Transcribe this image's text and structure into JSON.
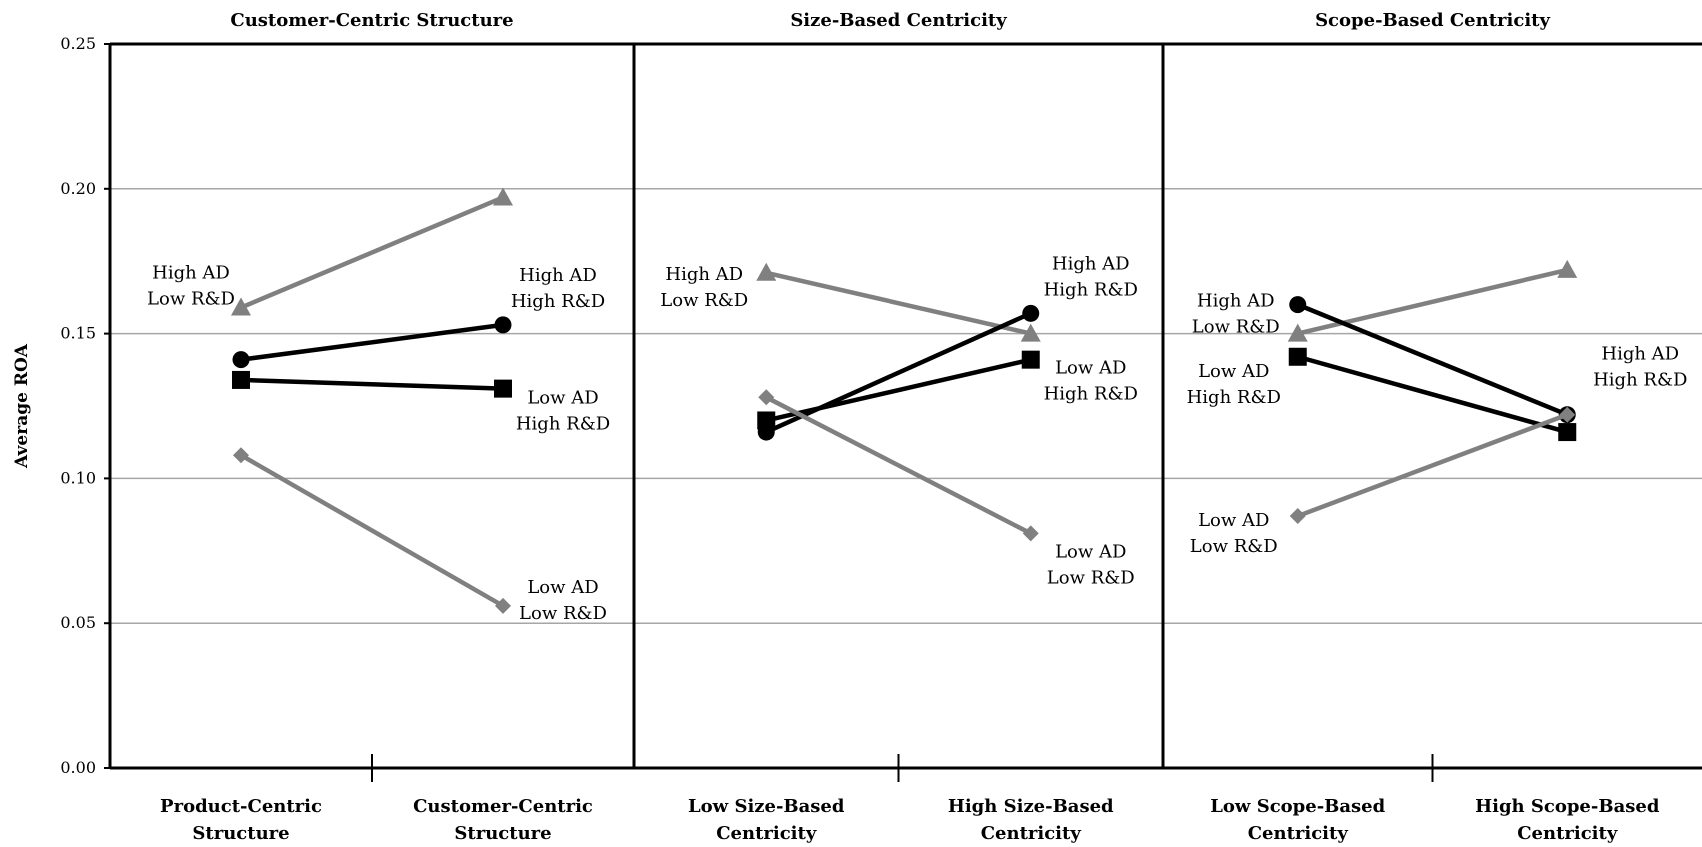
{
  "chart_data": {
    "type": "line",
    "ylabel": "Average ROA",
    "ylim": [
      0,
      0.25
    ],
    "yticks": [
      "0.00",
      "0.05",
      "0.10",
      "0.15",
      "0.20",
      "0.25"
    ],
    "grid": true,
    "series_styles": {
      "high_ad_low_rd": {
        "color": "#808080",
        "marker": "triangle"
      },
      "high_ad_high_rd": {
        "color": "#000000",
        "marker": "circle"
      },
      "low_ad_high_rd": {
        "color": "#000000",
        "marker": "square"
      },
      "low_ad_low_rd": {
        "color": "#808080",
        "marker": "diamond"
      }
    },
    "panels": [
      {
        "title": "Customer-Centric Structure",
        "categories": [
          [
            "Product-Centric",
            "Structure"
          ],
          [
            "Customer-Centric",
            "Structure"
          ]
        ],
        "series": [
          {
            "key": "high_ad_low_rd",
            "values": [
              0.159,
              0.197
            ]
          },
          {
            "key": "high_ad_high_rd",
            "values": [
              0.141,
              0.153
            ]
          },
          {
            "key": "low_ad_high_rd",
            "values": [
              0.134,
              0.131
            ]
          },
          {
            "key": "low_ad_low_rd",
            "values": [
              0.108,
              0.056
            ]
          }
        ],
        "annotations": [
          {
            "lines": [
              "High AD",
              "Low R&D"
            ]
          },
          {
            "lines": [
              "High AD",
              "High R&D"
            ]
          },
          {
            "lines": [
              "Low AD",
              "High R&D"
            ]
          },
          {
            "lines": [
              "Low AD",
              "Low R&D"
            ]
          }
        ]
      },
      {
        "title": "Size-Based Centricity",
        "categories": [
          [
            "Low Size-Based",
            "Centricity"
          ],
          [
            "High Size-Based",
            "Centricity"
          ]
        ],
        "series": [
          {
            "key": "high_ad_low_rd",
            "values": [
              0.171,
              0.15
            ]
          },
          {
            "key": "high_ad_high_rd",
            "values": [
              0.116,
              0.157
            ]
          },
          {
            "key": "low_ad_high_rd",
            "values": [
              0.12,
              0.141
            ]
          },
          {
            "key": "low_ad_low_rd",
            "values": [
              0.128,
              0.081
            ]
          }
        ],
        "annotations": [
          {
            "lines": [
              "High AD",
              "Low R&D"
            ]
          },
          {
            "lines": [
              "High AD",
              "High R&D"
            ]
          },
          {
            "lines": [
              "Low AD",
              "High R&D"
            ]
          },
          {
            "lines": [
              "Low AD",
              "Low R&D"
            ]
          }
        ]
      },
      {
        "title": "Scope-Based Centricity",
        "categories": [
          [
            "Low Scope-Based",
            "Centricity"
          ],
          [
            "High Scope-Based",
            "Centricity"
          ]
        ],
        "series": [
          {
            "key": "high_ad_low_rd",
            "values": [
              0.15,
              0.172
            ]
          },
          {
            "key": "high_ad_high_rd",
            "values": [
              0.16,
              0.122
            ]
          },
          {
            "key": "low_ad_high_rd",
            "values": [
              0.142,
              0.116
            ]
          },
          {
            "key": "low_ad_low_rd",
            "values": [
              0.087,
              0.122
            ]
          }
        ],
        "annotations": [
          {
            "lines": [
              "High AD",
              "Low R&D"
            ]
          },
          {
            "lines": [
              "High AD",
              "High R&D"
            ]
          },
          {
            "lines": [
              "Low AD",
              "High R&D"
            ]
          },
          {
            "lines": [
              "Low AD",
              "Low R&D"
            ]
          }
        ]
      }
    ]
  }
}
